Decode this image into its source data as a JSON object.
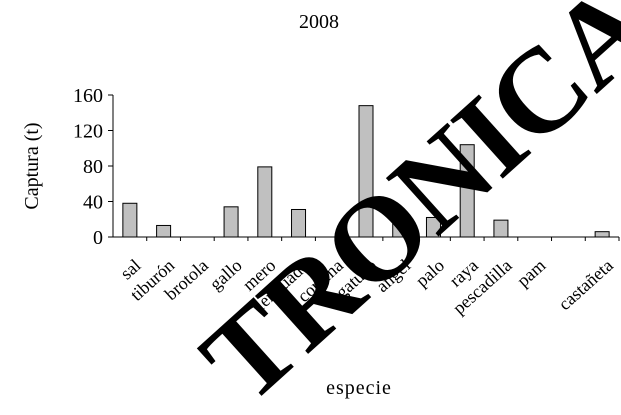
{
  "chart_data": {
    "type": "bar",
    "title": "2008",
    "ylabel": "Captura (t)",
    "xlabel": "especie",
    "ylim": [
      0,
      160
    ],
    "yticks": [
      0,
      40,
      80,
      120,
      160
    ],
    "grid": false,
    "legend": "none",
    "bar_color": "#c0c0c0",
    "bar_edge_color": "#000000",
    "categories": [
      "sal",
      "tiburón",
      "brotola",
      "gallo",
      "mero",
      "lenguado",
      "corvina",
      "gatuzo",
      "angel",
      "palo",
      "raya",
      "pescadilla",
      "pam",
      "",
      "castañeta"
    ],
    "values": [
      38,
      13,
      0,
      34,
      79,
      31,
      0,
      148,
      15,
      22,
      104,
      19,
      0,
      0,
      6
    ]
  },
  "watermark": {
    "text": "TRONICA",
    "color": "#000000"
  }
}
